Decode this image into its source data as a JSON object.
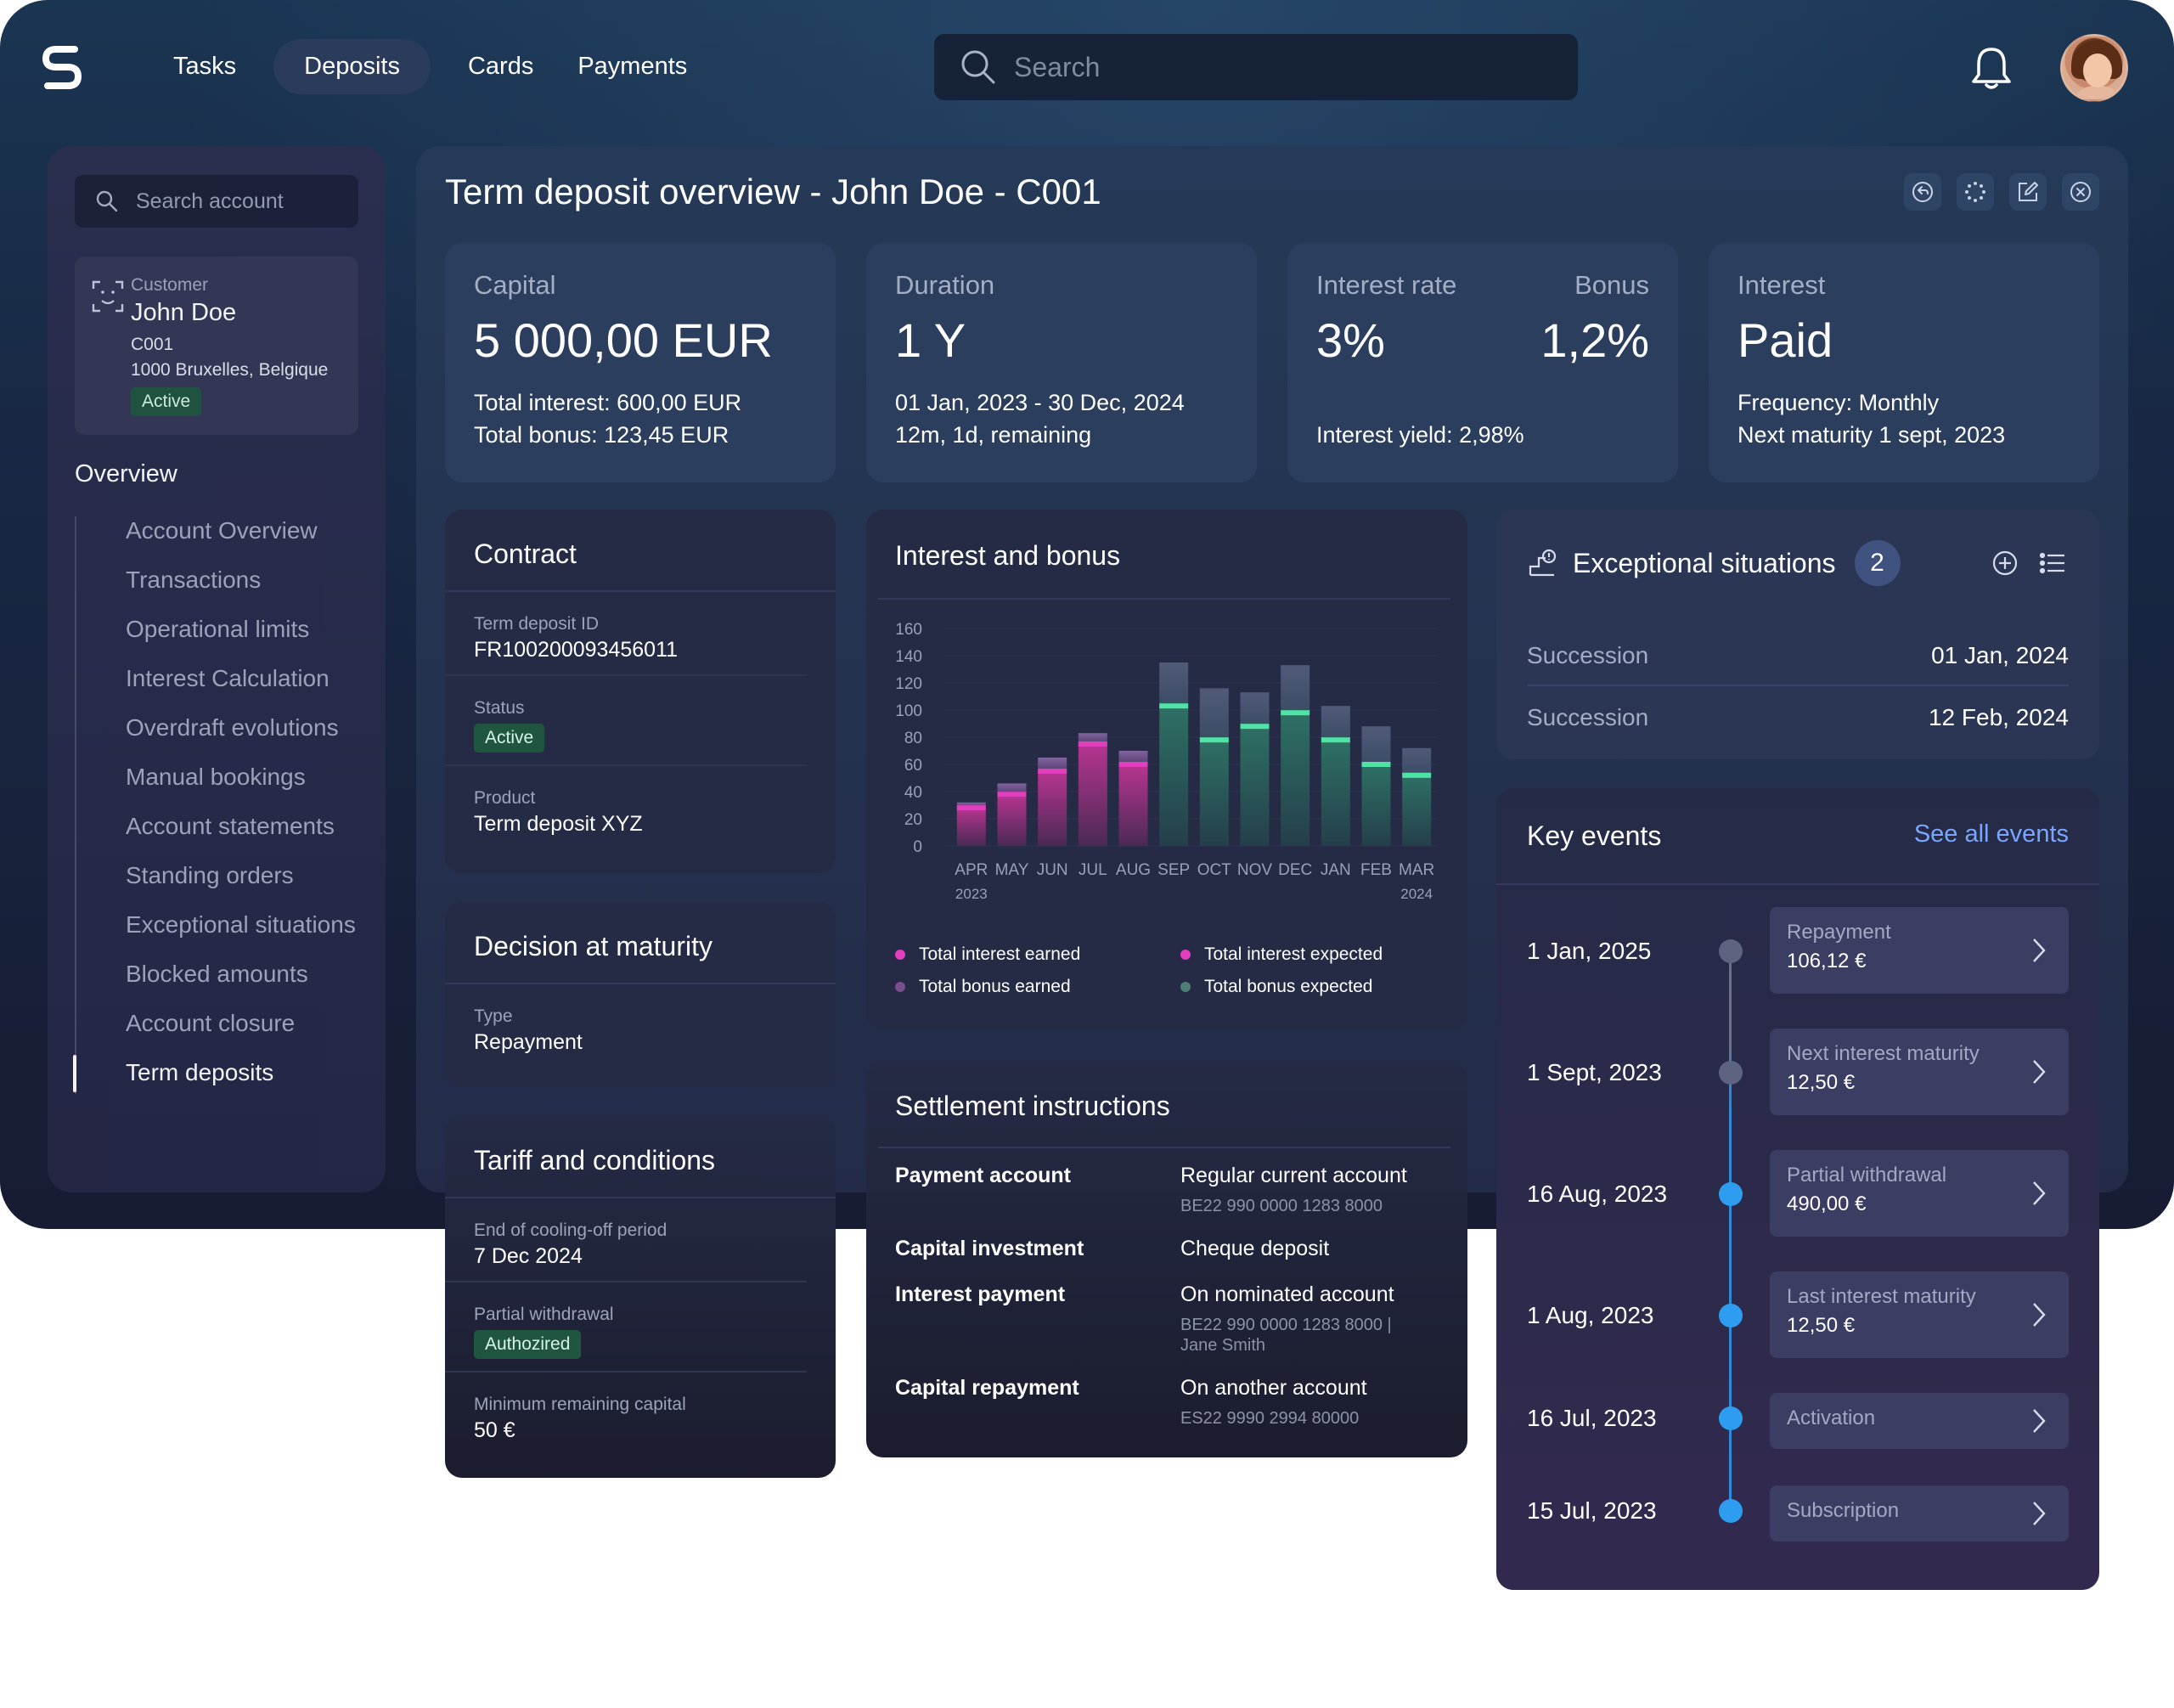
{
  "nav": {
    "items": [
      "Tasks",
      "Deposits",
      "Cards",
      "Payments"
    ],
    "active": "Deposits",
    "search_placeholder": "Search"
  },
  "sidebar": {
    "search_placeholder": "Search account",
    "customer": {
      "label": "Customer",
      "name": "John Doe",
      "id": "C001",
      "address": "1000 Bruxelles, Belgique",
      "status": "Active"
    },
    "section_title": "Overview",
    "items": [
      "Account Overview",
      "Transactions",
      "Operational limits",
      "Interest Calculation",
      "Overdraft evolutions",
      "Manual bookings",
      "Account statements",
      "Standing orders",
      "Exceptional situations",
      "Blocked amounts",
      "Account closure",
      "Term deposits"
    ],
    "active_item": "Term deposits"
  },
  "main": {
    "title": "Term deposit overview - John Doe - C001"
  },
  "stats": {
    "capital": {
      "label": "Capital",
      "value": "5 000,00 EUR",
      "line1": "Total interest: 600,00 EUR",
      "line2": "Total bonus: 123,45 EUR"
    },
    "duration": {
      "label": "Duration",
      "value": "1 Y",
      "line1": "01 Jan, 2023 - 30 Dec, 2024",
      "line2": "12m, 1d, remaining"
    },
    "rate": {
      "label": "Interest rate",
      "value": "3%",
      "bonus_label": "Bonus",
      "bonus_value": "1,2%",
      "line2": "Interest yield: 2,98%"
    },
    "interest": {
      "label": "Interest",
      "value": "Paid",
      "line1": "Frequency: Monthly",
      "line2": "Next maturity 1 sept, 2023"
    }
  },
  "contract": {
    "title": "Contract",
    "id_label": "Term deposit ID",
    "id_value": "FR100200093456011",
    "status_label": "Status",
    "status_value": "Active",
    "product_label": "Product",
    "product_value": "Term deposit XYZ"
  },
  "decision": {
    "title": "Decision at maturity",
    "type_label": "Type",
    "type_value": "Repayment"
  },
  "tariff": {
    "title": "Tariff and conditions",
    "cooling_label": "End of cooling-off period",
    "cooling_value": "7 Dec 2024",
    "withdrawal_label": "Partial withdrawal",
    "withdrawal_value": "Authozired",
    "min_label": "Minimum remaining capital",
    "min_value": "50 €"
  },
  "chart": {
    "title": "Interest and bonus",
    "year_start": "2023",
    "year_end": "2024",
    "legend": [
      "Total interest earned",
      "Total interest expected",
      "Total bonus earned",
      "Total bonus expected"
    ]
  },
  "chart_data": {
    "type": "bar",
    "title": "Interest and bonus",
    "categories": [
      "APR",
      "MAY",
      "JUN",
      "JUL",
      "AUG",
      "SEP",
      "OCT",
      "NOV",
      "DEC",
      "JAN",
      "FEB",
      "MAR"
    ],
    "series": [
      {
        "name": "Total interest earned",
        "values": [
          28,
          38,
          55,
          75,
          60,
          0,
          0,
          0,
          0,
          0,
          0,
          0
        ]
      },
      {
        "name": "Total interest expected",
        "values": [
          0,
          0,
          0,
          0,
          0,
          103,
          78,
          88,
          98,
          78,
          60,
          52
        ]
      },
      {
        "name": "Total bonus earned",
        "values": [
          4,
          8,
          10,
          8,
          10,
          0,
          0,
          0,
          0,
          0,
          0,
          0
        ]
      },
      {
        "name": "Total bonus expected",
        "values": [
          0,
          0,
          0,
          0,
          0,
          32,
          38,
          25,
          35,
          25,
          28,
          20
        ]
      }
    ],
    "yticks": [
      0,
      20,
      40,
      60,
      80,
      100,
      120,
      140,
      160
    ],
    "ylim": [
      0,
      160
    ],
    "xlabel": "",
    "ylabel": "",
    "legend_position": "bottom",
    "colors": {
      "interest_earned": "#d63fb0",
      "interest_expected": "#4fe3a5",
      "bonus_earned": "#7a4d8c",
      "bonus_expected": "#4d7f74"
    }
  },
  "exceptional": {
    "title": "Exceptional situations",
    "count": "2",
    "rows": [
      {
        "label": "Succession",
        "date": "01 Jan, 2024"
      },
      {
        "label": "Succession",
        "date": "12 Feb, 2024"
      }
    ]
  },
  "events": {
    "title": "Key events",
    "see_all": "See all events",
    "items": [
      {
        "date": "1 Jan, 2025",
        "title": "Repayment",
        "amount": "106,12 €",
        "state": "future"
      },
      {
        "date": "1 Sept, 2023",
        "title": "Next interest maturity",
        "amount": "12,50 €",
        "state": "future"
      },
      {
        "date": "16 Aug, 2023",
        "title": "Partial withdrawal",
        "amount": "490,00 €",
        "state": "past"
      },
      {
        "date": "1 Aug, 2023",
        "title": "Last interest maturity",
        "amount": "12,50 €",
        "state": "past"
      },
      {
        "date": "16 Jul, 2023",
        "title": "Activation",
        "amount": "",
        "state": "past"
      },
      {
        "date": "15 Jul, 2023",
        "title": "Subscription",
        "amount": "",
        "state": "past"
      }
    ]
  },
  "settlement": {
    "title": "Settlement instructions",
    "rows": [
      {
        "label": "Payment account",
        "value": "Regular current account",
        "sub": "BE22 990 0000 1283 8000"
      },
      {
        "label": "Capital investment",
        "value": "Cheque deposit",
        "sub": ""
      },
      {
        "label": "Interest payment",
        "value": "On nominated account",
        "sub": "BE22 990 0000 1283 8000 |",
        "sub2": "Jane Smith"
      },
      {
        "label": "Capital repayment",
        "value": "On another account",
        "sub": "ES22 9990 2994 80000"
      }
    ]
  }
}
